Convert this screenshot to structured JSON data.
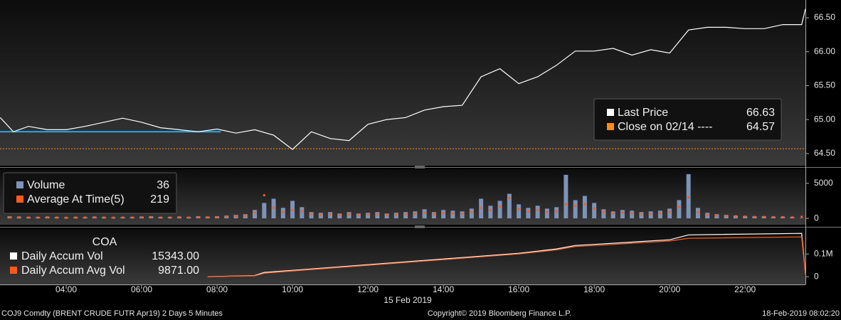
{
  "chart_data": [
    {
      "type": "line",
      "xlim": [
        2.245,
        23.6
      ],
      "ylim": [
        64.32,
        66.71
      ],
      "yticks": [
        {
          "value": 64.5,
          "label": "64.50"
        },
        {
          "value": 65,
          "label": "65.00"
        },
        {
          "value": 65.5,
          "label": "65.50"
        },
        {
          "value": 66,
          "label": "66.00"
        },
        {
          "value": 66.5,
          "label": "66.50"
        }
      ],
      "series": [
        {
          "name": "Last Price",
          "color": "#ffffff",
          "last": 66.63,
          "x": [
            2.25,
            2.6,
            3.0,
            3.5,
            4.0,
            4.5,
            5.0,
            5.5,
            6.0,
            6.5,
            7.0,
            7.5,
            8.0,
            8.5,
            9.0,
            9.5,
            10.0,
            10.5,
            11.0,
            11.5,
            12.0,
            12.5,
            13.0,
            13.5,
            14.0,
            14.5,
            15.0,
            15.5,
            16.0,
            16.5,
            17.0,
            17.5,
            18.0,
            18.5,
            19.0,
            19.5,
            20.0,
            20.5,
            21.0,
            21.5,
            22.0,
            22.5,
            23.0,
            23.5,
            23.6
          ],
          "values": [
            65.03,
            64.82,
            64.9,
            64.85,
            64.85,
            64.9,
            64.96,
            65.02,
            64.96,
            64.88,
            64.85,
            64.82,
            64.86,
            64.8,
            64.85,
            64.77,
            64.56,
            64.82,
            64.72,
            64.69,
            64.93,
            65.0,
            65.03,
            65.14,
            65.19,
            65.21,
            65.63,
            65.75,
            65.53,
            65.63,
            65.8,
            66.01,
            66.01,
            66.05,
            65.95,
            66.03,
            65.98,
            66.32,
            66.36,
            66.36,
            66.34,
            66.34,
            66.4,
            66.4,
            66.63
          ]
        }
      ],
      "reference": {
        "name": "Close on 02/14 ----",
        "value": 64.57,
        "color": "#ff8c1a"
      },
      "profile_line": {
        "value": 64.82,
        "color": "#2aa8e8",
        "x": [
          2.245,
          8.1
        ]
      }
    },
    {
      "type": "bar",
      "xlim": [
        2.245,
        23.6
      ],
      "ylim": [
        -900,
        7000
      ],
      "yticks": [
        0,
        5000
      ],
      "series": [
        {
          "name": "Volume",
          "color": "#7d93b8",
          "last": 36,
          "x": [
            2.5,
            2.75,
            3,
            3.25,
            3.5,
            3.75,
            4,
            4.25,
            4.5,
            4.75,
            5,
            5.25,
            5.5,
            5.75,
            6,
            6.25,
            6.5,
            6.75,
            7,
            7.25,
            7.5,
            7.75,
            8,
            8.25,
            8.5,
            8.75,
            9,
            9.25,
            9.5,
            9.75,
            10,
            10.25,
            10.5,
            10.75,
            11,
            11.25,
            11.5,
            11.75,
            12,
            12.25,
            12.5,
            12.75,
            13,
            13.25,
            13.5,
            13.75,
            14,
            14.25,
            14.5,
            14.75,
            15,
            15.25,
            15.5,
            15.75,
            16,
            16.25,
            16.5,
            16.75,
            17,
            17.25,
            17.5,
            17.75,
            18,
            18.25,
            18.5,
            18.75,
            19,
            19.25,
            19.5,
            19.75,
            20,
            20.25,
            20.5,
            20.75,
            21,
            21.25,
            21.5,
            21.75,
            22,
            22.25,
            22.5,
            22.75,
            23,
            23.25,
            23.5
          ],
          "values": [
            300,
            250,
            200,
            200,
            250,
            200,
            150,
            200,
            200,
            250,
            200,
            150,
            200,
            200,
            250,
            300,
            200,
            200,
            250,
            200,
            300,
            250,
            300,
            400,
            500,
            600,
            1200,
            2200,
            2800,
            1500,
            2500,
            1600,
            900,
            800,
            900,
            700,
            900,
            700,
            800,
            900,
            700,
            800,
            900,
            1000,
            1300,
            900,
            1200,
            1100,
            1000,
            1400,
            2800,
            1800,
            2500,
            3500,
            2000,
            1500,
            1800,
            1400,
            1600,
            6200,
            2600,
            3200,
            2200,
            1300,
            1000,
            1200,
            1100,
            900,
            1000,
            1100,
            1400,
            2600,
            6300,
            1500,
            800,
            600,
            500,
            400,
            350,
            300,
            300,
            250,
            250,
            200,
            36
          ]
        },
        {
          "name": "Average At Time(5)",
          "color": "#ff5a1a",
          "last": 219,
          "x": [
            2.5,
            2.75,
            3,
            3.25,
            3.5,
            3.75,
            4,
            4.25,
            4.5,
            4.75,
            5,
            5.25,
            5.5,
            5.75,
            6,
            6.25,
            6.5,
            6.75,
            7,
            7.25,
            7.5,
            7.75,
            8,
            8.25,
            8.5,
            8.75,
            9,
            9.25,
            9.5,
            9.75,
            10,
            10.25,
            10.5,
            10.75,
            11,
            11.25,
            11.5,
            11.75,
            12,
            12.25,
            12.5,
            12.75,
            13,
            13.25,
            13.5,
            13.75,
            14,
            14.25,
            14.5,
            14.75,
            15,
            15.25,
            15.5,
            15.75,
            16,
            16.25,
            16.5,
            16.75,
            17,
            17.25,
            17.5,
            17.75,
            18,
            18.25,
            18.5,
            18.75,
            19,
            19.25,
            19.5,
            19.75,
            20,
            20.25,
            20.5,
            20.75,
            21,
            21.25,
            21.5,
            21.75,
            22,
            22.25,
            22.5,
            22.75,
            23,
            23.25,
            23.5
          ],
          "values": [
            150,
            150,
            120,
            120,
            150,
            120,
            100,
            120,
            120,
            150,
            120,
            100,
            120,
            120,
            150,
            180,
            120,
            120,
            150,
            120,
            180,
            150,
            180,
            250,
            300,
            350,
            800,
            3300,
            1500,
            900,
            1200,
            1000,
            600,
            500,
            600,
            500,
            600,
            500,
            550,
            600,
            500,
            550,
            600,
            650,
            800,
            600,
            750,
            700,
            650,
            900,
            1500,
            1200,
            1700,
            2900,
            1300,
            1000,
            1200,
            900,
            1000,
            2000,
            1800,
            2000,
            1400,
            900,
            700,
            800,
            700,
            600,
            650,
            700,
            900,
            1600,
            3000,
            900,
            500,
            400,
            350,
            300,
            250,
            200,
            200,
            180,
            180,
            150,
            219
          ]
        }
      ]
    },
    {
      "type": "line",
      "title": "COA",
      "xlim": [
        2.245,
        23.6
      ],
      "ylim": [
        -34000,
        210000
      ],
      "yticks": [
        0,
        {
          "value": 100000,
          "label": "0.1M"
        }
      ],
      "xticks": [
        {
          "value": 4,
          "label": "04:00"
        },
        {
          "value": 6,
          "label": "06:00"
        },
        {
          "value": 8,
          "label": "08:00"
        },
        {
          "value": 10,
          "label": "10:00"
        },
        {
          "value": 12,
          "label": "12:00"
        },
        {
          "value": 14,
          "label": "14:00"
        },
        {
          "value": 16,
          "label": "16:00"
        },
        {
          "value": 18,
          "label": "18:00"
        },
        {
          "value": 20,
          "label": "20:00"
        },
        {
          "value": 22,
          "label": "22:00"
        }
      ],
      "date_label": "15 Feb 2019",
      "series": [
        {
          "name": "Daily Accum Vol",
          "color": "#ffffff",
          "last": 15343,
          "last_label": "15343.00",
          "x": [
            7.75,
            9.0,
            9.25,
            10.0,
            12.0,
            14.0,
            16.0,
            17.0,
            17.5,
            18.0,
            20.0,
            20.5,
            23.5,
            23.6
          ],
          "values": [
            0,
            5000,
            18750,
            28000,
            53000,
            78000,
            103000,
            122000,
            137500,
            142000,
            162500,
            184000,
            190600,
            15343
          ]
        },
        {
          "name": "Daily Accum Avg Vol",
          "color": "#ff5a1a",
          "last": 9871,
          "last_label": "9871.00",
          "x": [
            7.75,
            9.0,
            9.25,
            10.0,
            12.0,
            14.0,
            16.0,
            17.0,
            17.5,
            18.0,
            20.0,
            20.5,
            23.5,
            23.6
          ],
          "values": [
            0,
            4000,
            15000,
            25000,
            50000,
            75000,
            100000,
            118000,
            133000,
            137000,
            157000,
            169000,
            175000,
            9871
          ]
        }
      ]
    }
  ],
  "footer": {
    "left": "COJ9 Comdty (BRENT CRUDE FUTR  Apr19) 2 Days 5 Minutes",
    "center": "Copyright© 2019 Bloomberg Finance L.P.",
    "right": "18-Feb-2019 08:02:20"
  }
}
